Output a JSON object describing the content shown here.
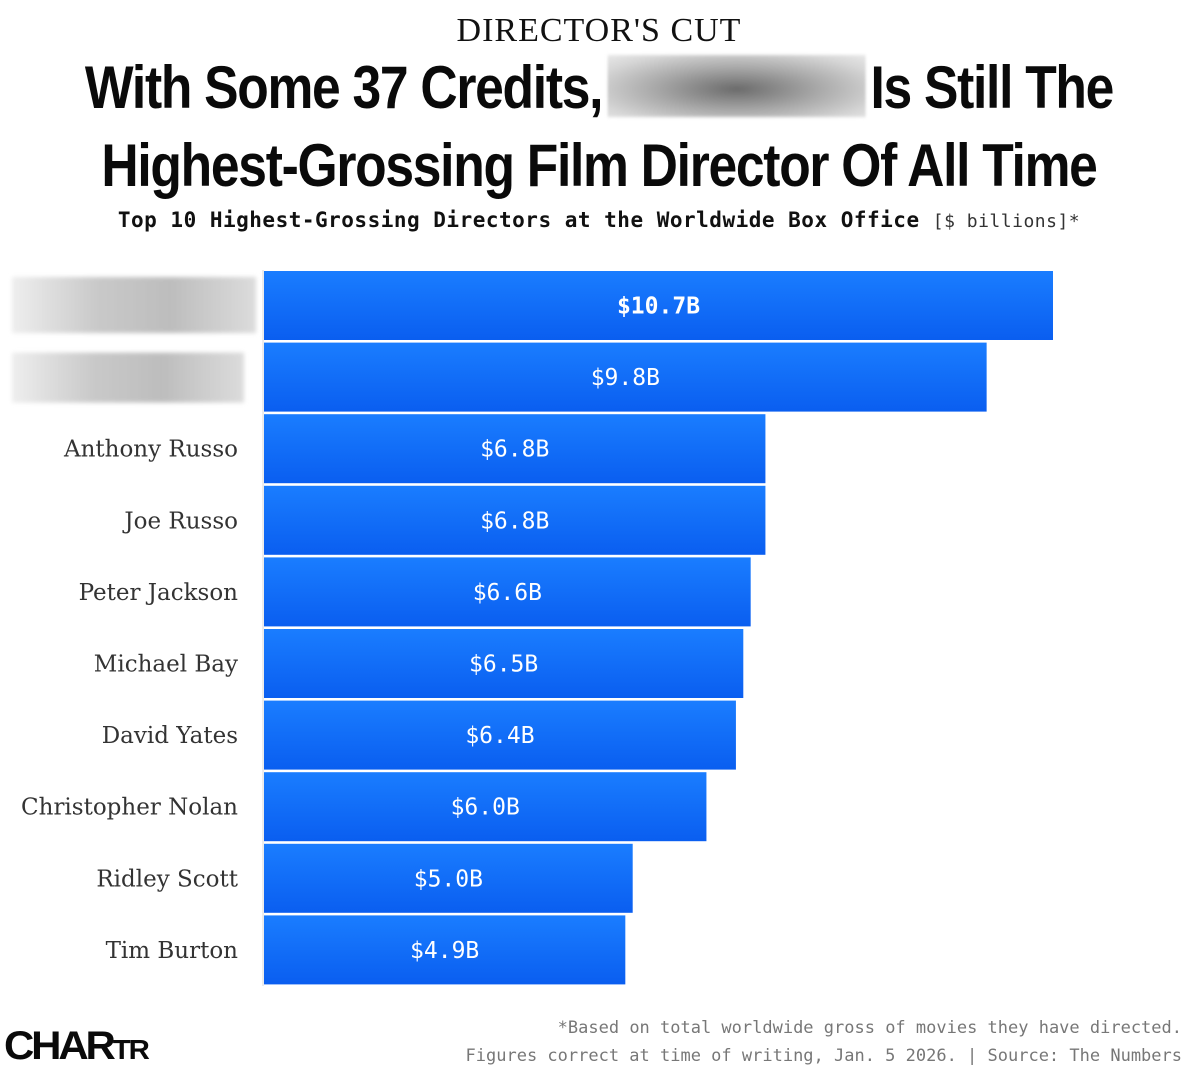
{
  "kicker": "DIRECTOR'S CUT",
  "headline": {
    "line1_before": "With Some 37 Credits,",
    "line1_after": "Is Still The",
    "line2": "Highest-Grossing Film Director Of All Time"
  },
  "subtitle": {
    "text": "Top 10 Highest-Grossing Directors at the Worldwide Box Office",
    "unit": "[$ billions]*"
  },
  "colors": {
    "bar_top": "#1a7dff",
    "bar_bottom": "#0a5ef0",
    "label_text": "#333333"
  },
  "chart_data": {
    "type": "bar",
    "orientation": "horizontal",
    "categories": [
      "",
      "",
      "Anthony Russo",
      "Joe Russo",
      "Peter Jackson",
      "Michael Bay",
      "David Yates",
      "Christopher Nolan",
      "Ridley Scott",
      "Tim Burton"
    ],
    "redacted": [
      true,
      true,
      false,
      false,
      false,
      false,
      false,
      false,
      false,
      false
    ],
    "values": [
      10.7,
      9.8,
      6.8,
      6.8,
      6.6,
      6.5,
      6.4,
      6.0,
      5.0,
      4.9
    ],
    "value_labels": [
      "$10.7B",
      "$9.8B",
      "$6.8B",
      "$6.8B",
      "$6.6B",
      "$6.5B",
      "$6.4B",
      "$6.0B",
      "$5.0B",
      "$4.9B"
    ],
    "xlim": [
      0,
      10.7
    ],
    "title": "Top 10 Highest-Grossing Directors at the Worldwide Box Office",
    "unit": "[$ billions]*"
  },
  "footnotes": {
    "line1": "*Based on total worldwide gross of movies they have directed.",
    "line2": "Figures correct at time of writing, Jan. 5 2026. | Source: The Numbers"
  },
  "logo": {
    "main": "CHAR",
    "tail": "TR"
  }
}
